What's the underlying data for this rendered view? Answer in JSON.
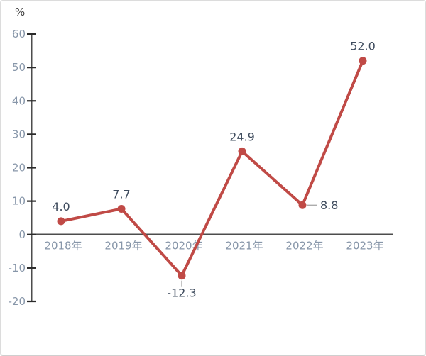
{
  "page": {
    "background": "#ffffff",
    "border_color": "#dcdcdc"
  },
  "chart_data": {
    "type": "line",
    "title": "",
    "unit_label": "%",
    "categories": [
      "2018年",
      "2019年",
      "2020年",
      "2021年",
      "2022年",
      "2023年"
    ],
    "values": [
      4.0,
      7.7,
      -12.3,
      24.9,
      8.8,
      52.0
    ],
    "data_labels": [
      "4.0",
      "7.7",
      "-12.3",
      "24.9",
      "8.8",
      "52.0"
    ],
    "label_placements": [
      "above",
      "above",
      "below-leader",
      "above",
      "right-leader",
      "above"
    ],
    "yticks": [
      60,
      50,
      40,
      30,
      20,
      10,
      0,
      -10,
      -20
    ],
    "ylim": [
      -20,
      60
    ],
    "grid": false,
    "legend": "none",
    "xlabel": "",
    "ylabel": "%",
    "colors": {
      "series": "#c04a46",
      "marker": "#c04a46",
      "axis": "#4d4d4d",
      "tick_mark": "#2b2b2b",
      "tick_label": "#8796a9",
      "category_label": "#8796a9",
      "data_label": "#3f4c5e",
      "unit_label": "#404040",
      "leader_line": "#a6a6a6"
    }
  }
}
